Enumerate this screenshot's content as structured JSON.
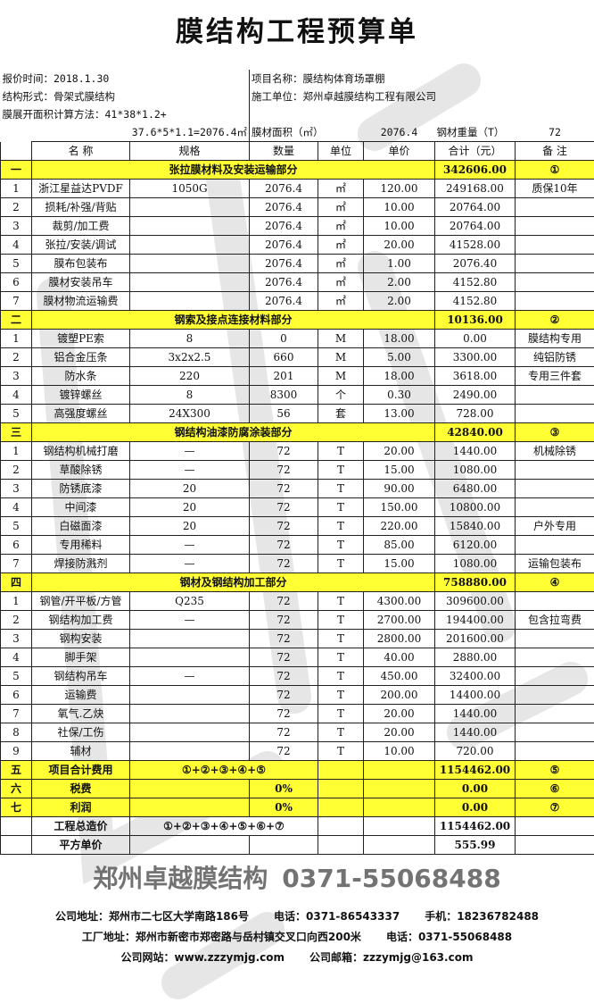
{
  "title": "膜结构工程预算单",
  "info": {
    "quote_time": "报价时间：2018.1.30",
    "project_name": "项目名称：膜结构体育场罩棚",
    "structure": "结构形式：骨架式膜结构",
    "contractor": "施工单位：郑州卓越膜结构工程有限公司",
    "area_method_1": "膜展开面积计算方法：41*38*1.2+",
    "area_method_2": "37.6*5*1.1=2076.4㎡",
    "membrane_area_label": "膜材面积（㎡）",
    "membrane_area_value": "2076.4",
    "steel_weight_label": "钢材重量（T）",
    "steel_weight_value": "72"
  },
  "columns": [
    "",
    "名 称",
    "规格",
    "数量",
    "单位",
    "单价",
    "合计（元）",
    "备 注"
  ],
  "table": {
    "rows": [
      {
        "kind": "section",
        "cells": [
          "一",
          "张拉膜材料及安装运输部分",
          "342606.00",
          "①"
        ]
      },
      {
        "kind": "item",
        "cells": [
          "1",
          "浙江星益达PVDF",
          "1050G",
          "2076.4",
          "㎡",
          "120.00",
          "249168.00",
          "质保10年"
        ]
      },
      {
        "kind": "item",
        "cells": [
          "2",
          "损耗/补强/背贴",
          "",
          "2076.4",
          "㎡",
          "10.00",
          "20764.00",
          ""
        ]
      },
      {
        "kind": "item",
        "cells": [
          "3",
          "裁剪/加工费",
          "",
          "2076.4",
          "㎡",
          "10.00",
          "20764.00",
          ""
        ]
      },
      {
        "kind": "item",
        "cells": [
          "4",
          "张拉/安装/调试",
          "",
          "2076.4",
          "㎡",
          "20.00",
          "41528.00",
          ""
        ]
      },
      {
        "kind": "item",
        "cells": [
          "5",
          "膜布包装布",
          "",
          "2076.4",
          "㎡",
          "1.00",
          "2076.40",
          ""
        ]
      },
      {
        "kind": "item",
        "cells": [
          "6",
          "膜材安装吊车",
          "",
          "2076.4",
          "㎡",
          "2.00",
          "4152.80",
          ""
        ]
      },
      {
        "kind": "item",
        "cells": [
          "7",
          "膜材物流运输费",
          "",
          "2076.4",
          "㎡",
          "2.00",
          "4152.80",
          ""
        ]
      },
      {
        "kind": "section",
        "cells": [
          "二",
          "钢索及接点连接材料部分",
          "10136.00",
          "②"
        ]
      },
      {
        "kind": "item",
        "cells": [
          "1",
          "镀塑PE索",
          "8",
          "0",
          "M",
          "18.00",
          "0.00",
          "膜结构专用"
        ]
      },
      {
        "kind": "item",
        "cells": [
          "2",
          "铝合金压条",
          "3x2x2.5",
          "660",
          "M",
          "5.00",
          "3300.00",
          "纯铝防锈"
        ]
      },
      {
        "kind": "item",
        "cells": [
          "3",
          "防水条",
          "220",
          "201",
          "M",
          "18.00",
          "3618.00",
          "专用三件套"
        ]
      },
      {
        "kind": "item",
        "cells": [
          "4",
          "镀锌螺丝",
          "8",
          "8300",
          "个",
          "0.30",
          "2490.00",
          ""
        ]
      },
      {
        "kind": "item",
        "cells": [
          "5",
          "高强度螺丝",
          "24X300",
          "56",
          "套",
          "13.00",
          "728.00",
          ""
        ]
      },
      {
        "kind": "section",
        "cells": [
          "三",
          "钢结构油漆防腐涂装部分",
          "42840.00",
          "③"
        ]
      },
      {
        "kind": "item",
        "cells": [
          "1",
          "钢结构机械打磨",
          "—",
          "72",
          "T",
          "20.00",
          "1440.00",
          "机械除锈"
        ]
      },
      {
        "kind": "item",
        "cells": [
          "2",
          "草酸除锈",
          "—",
          "72",
          "T",
          "15.00",
          "1080.00",
          ""
        ]
      },
      {
        "kind": "item",
        "cells": [
          "3",
          "防锈底漆",
          "20",
          "72",
          "T",
          "90.00",
          "6480.00",
          ""
        ]
      },
      {
        "kind": "item",
        "cells": [
          "4",
          "中间漆",
          "20",
          "72",
          "T",
          "150.00",
          "10800.00",
          ""
        ]
      },
      {
        "kind": "item",
        "cells": [
          "5",
          "白磁面漆",
          "20",
          "72",
          "T",
          "220.00",
          "15840.00",
          "户外专用"
        ]
      },
      {
        "kind": "item",
        "cells": [
          "6",
          "专用稀料",
          "—",
          "72",
          "T",
          "85.00",
          "6120.00",
          ""
        ]
      },
      {
        "kind": "item",
        "cells": [
          "7",
          "焊接防溅剂",
          "—",
          "72",
          "T",
          "15.00",
          "1080.00",
          "运输包装布"
        ]
      },
      {
        "kind": "section",
        "cells": [
          "四",
          "钢材及钢结构加工部分",
          "758880.00",
          "④"
        ]
      },
      {
        "kind": "item",
        "cells": [
          "1",
          "钢管/开平板/方管",
          "Q235",
          "72",
          "T",
          "4300.00",
          "309600.00",
          ""
        ]
      },
      {
        "kind": "item",
        "cells": [
          "2",
          "钢结构加工费",
          "—",
          "72",
          "T",
          "2700.00",
          "194400.00",
          "包含拉弯费"
        ]
      },
      {
        "kind": "item",
        "cells": [
          "3",
          "钢构安装",
          "",
          "72",
          "T",
          "2800.00",
          "201600.00",
          ""
        ]
      },
      {
        "kind": "item",
        "cells": [
          "4",
          "脚手架",
          "",
          "72",
          "T",
          "40.00",
          "2880.00",
          ""
        ]
      },
      {
        "kind": "item",
        "cells": [
          "5",
          "钢结构吊车",
          "—",
          "72",
          "T",
          "450.00",
          "32400.00",
          ""
        ]
      },
      {
        "kind": "item",
        "cells": [
          "6",
          "运输费",
          "",
          "72",
          "T",
          "200.00",
          "14400.00",
          ""
        ]
      },
      {
        "kind": "item",
        "cells": [
          "7",
          "氧气.乙炔",
          "",
          "72",
          "T",
          "20.00",
          "1440.00",
          ""
        ]
      },
      {
        "kind": "item",
        "cells": [
          "8",
          "社保/工伤",
          "",
          "72",
          "T",
          "20.00",
          "1440.00",
          ""
        ]
      },
      {
        "kind": "item",
        "cells": [
          "9",
          "辅材",
          "",
          "72",
          "T",
          "10.00",
          "720.00",
          ""
        ]
      },
      {
        "kind": "formula",
        "cls": "sum",
        "cells": [
          "五",
          "项目合计费用",
          "①+②+③+④+⑤",
          "",
          "",
          "1154462.00",
          "⑤"
        ]
      },
      {
        "kind": "rate",
        "cls": "sum",
        "cells": [
          "六",
          "税费",
          "",
          "0%",
          "",
          "",
          "0.00",
          "⑥"
        ]
      },
      {
        "kind": "rate",
        "cls": "sum",
        "cells": [
          "七",
          "利润",
          "",
          "0%",
          "",
          "",
          "0.00",
          "⑦"
        ]
      },
      {
        "kind": "formula",
        "cls": "tot",
        "cells": [
          "",
          "工程总造价",
          "①+②+③+④+⑤+⑥+⑦",
          "",
          "",
          "1154462.00",
          ""
        ]
      },
      {
        "kind": "rate",
        "cls": "tot",
        "cells": [
          "",
          "平方单价",
          "",
          "",
          "",
          "",
          "555.99",
          ""
        ]
      }
    ]
  },
  "footer": {
    "company_address": "公司地址：郑州市二七区大学南路186号",
    "phone": "电话：0371-86543337",
    "mobile": "手机：18236782488",
    "factory_address": "工厂地址：郑州市新密市郑密路与岳村镇交叉口向西200米",
    "factory_phone": "电话：0371-55068488",
    "website": "公司网站：www.zzzymjg.com",
    "email": "公司邮箱：zzzymjg@163.com"
  },
  "watermark": {
    "line1": "郑州卓越膜结构",
    "line2": "0371-55068488"
  },
  "colors": {
    "section_bg": "#ffff33",
    "border": "#222222"
  }
}
